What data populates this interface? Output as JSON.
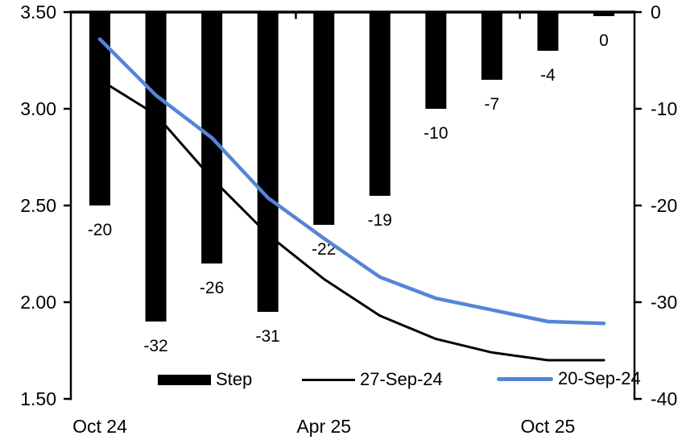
{
  "chart_data": {
    "type": "combo",
    "subtype": "bar+line, dual axis",
    "bar_series": {
      "name": "Step",
      "axis": "right",
      "unit": "bp",
      "color": "#000000",
      "values": [
        -20,
        -32,
        -26,
        -31,
        -22,
        -19,
        -10,
        -7,
        -4,
        0
      ],
      "labels": [
        "-20",
        "-32",
        "-26",
        "-31",
        "-22",
        "-19",
        "-10",
        "-7",
        "-4",
        "0"
      ]
    },
    "line_series": [
      {
        "name": "27-Sep-24",
        "axis": "left",
        "color": "#000000",
        "values": [
          3.15,
          2.97,
          2.64,
          2.35,
          2.12,
          1.93,
          1.81,
          1.74,
          1.7,
          1.7
        ]
      },
      {
        "name": "20-Sep-24",
        "axis": "left",
        "color": "#5585D6",
        "values": [
          3.36,
          3.07,
          2.85,
          2.54,
          2.33,
          2.13,
          2.02,
          1.96,
          1.9,
          1.89
        ]
      }
    ],
    "x_axis": {
      "tick_labels": [
        "Oct 24",
        "Apr 25",
        "Oct 25"
      ],
      "label_slots": [
        0,
        4,
        8
      ],
      "top_tick_slot_boundaries": [
        4,
        8
      ],
      "n_slots": 10
    },
    "left_axis": {
      "max": 3.5,
      "min": 1.5,
      "tick_labels": [
        "3.50",
        "3.00",
        "2.50",
        "2.00",
        "1.50"
      ]
    },
    "right_axis": {
      "max": 0,
      "min": -40,
      "tick_labels": [
        "0",
        "-10",
        "-20",
        "-30",
        "-40"
      ]
    },
    "legend_position": "bottom-inside",
    "grid": false,
    "title": ""
  }
}
